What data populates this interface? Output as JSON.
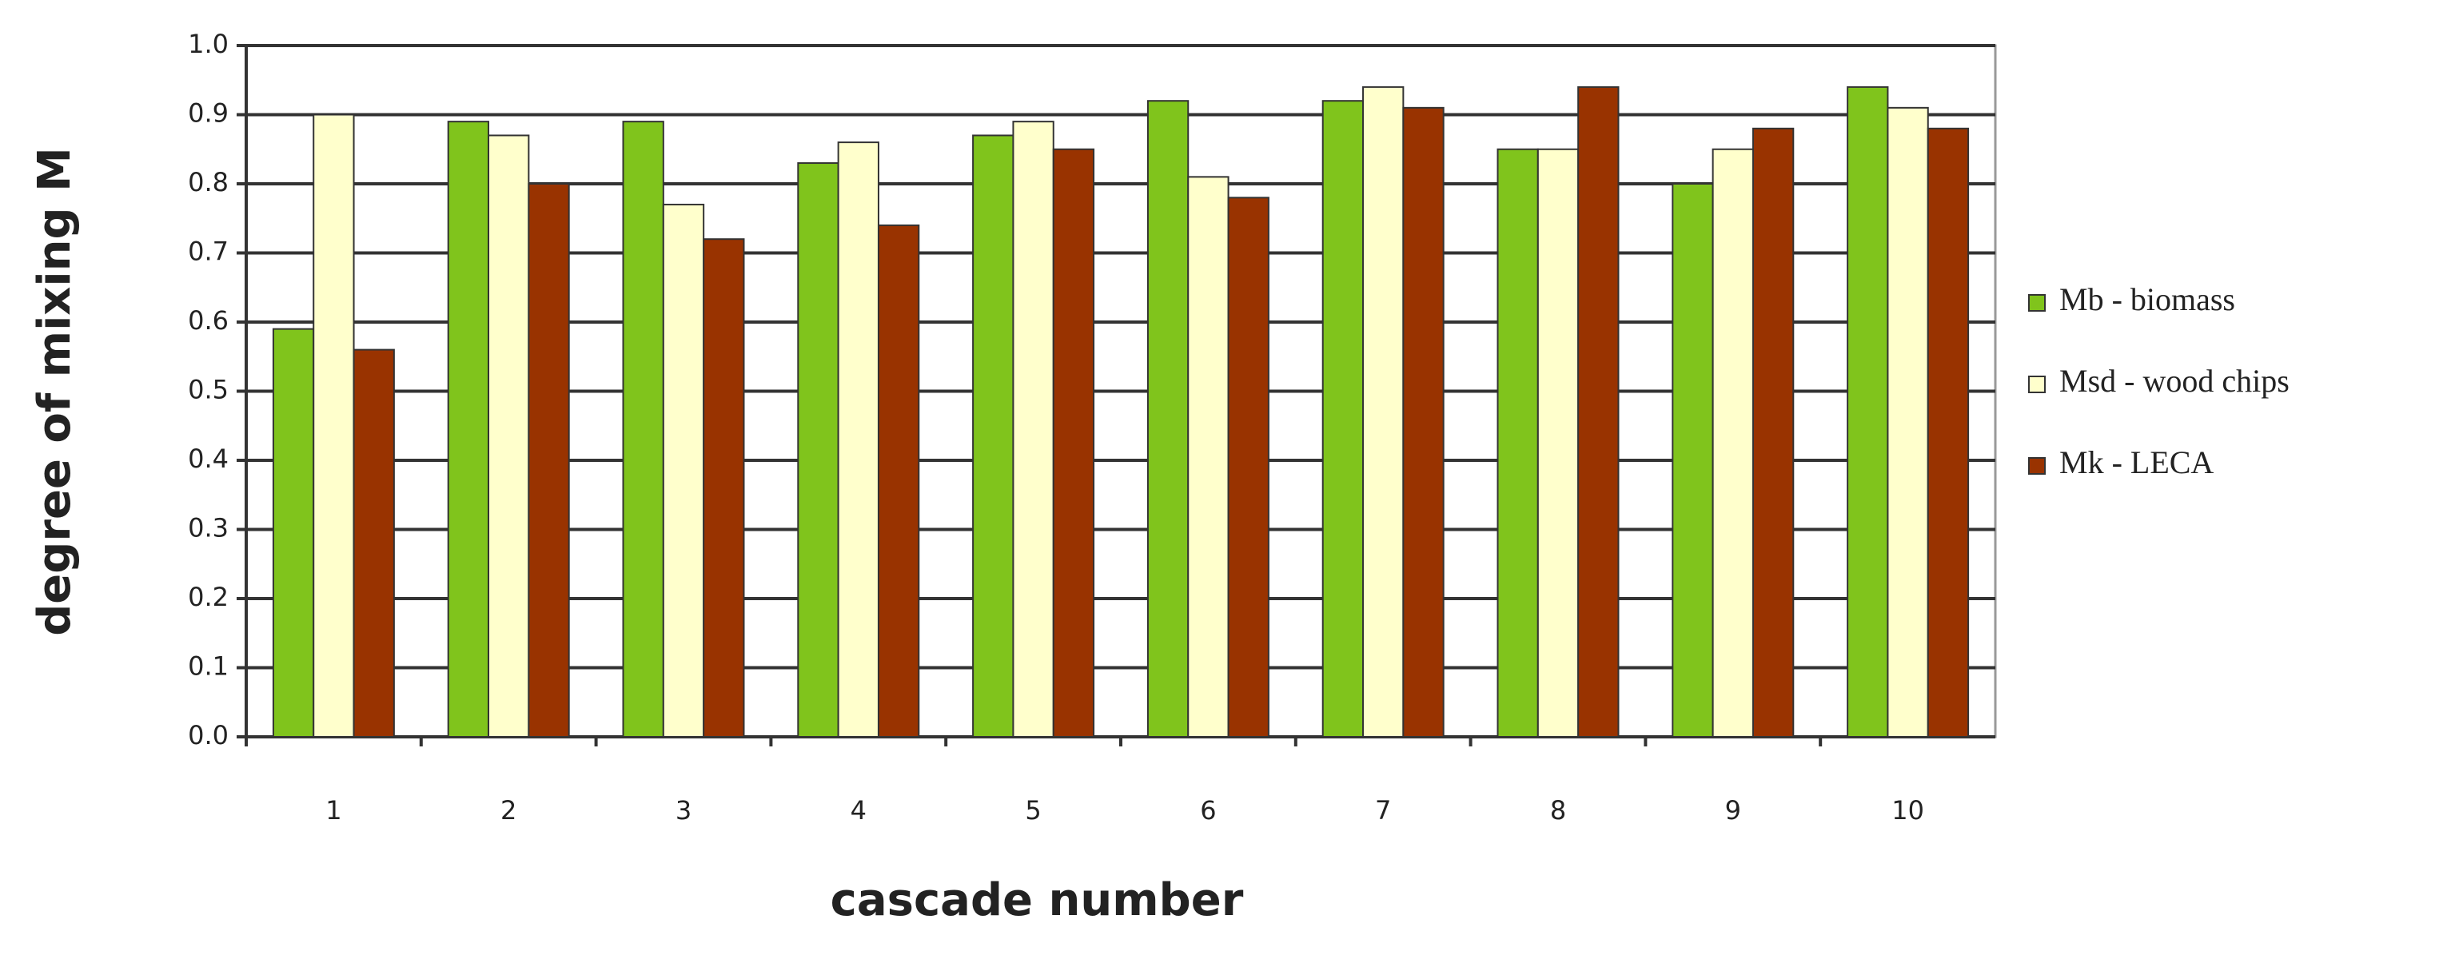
{
  "chart_data": {
    "type": "bar",
    "x_label": "cascade number",
    "y_label": "degree of mixing M",
    "categories": [
      "1",
      "2",
      "3",
      "4",
      "5",
      "6",
      "7",
      "8",
      "9",
      "10"
    ],
    "series": [
      {
        "name": "Mb - biomass",
        "color": "#80c41c",
        "values": [
          0.59,
          0.89,
          0.89,
          0.83,
          0.87,
          0.92,
          0.92,
          0.85,
          0.8,
          0.94
        ]
      },
      {
        "name": "Msd - wood chips",
        "color": "#ffffcc",
        "values": [
          0.9,
          0.87,
          0.77,
          0.86,
          0.89,
          0.81,
          0.94,
          0.85,
          0.85,
          0.91
        ]
      },
      {
        "name": "Mk - LECA",
        "color": "#993300",
        "values": [
          0.56,
          0.8,
          0.72,
          0.74,
          0.85,
          0.78,
          0.91,
          0.94,
          0.88,
          0.88
        ]
      }
    ],
    "ylim": [
      0,
      1
    ],
    "yticks": [
      {
        "value": 0,
        "label": "0.0"
      },
      0.1,
      0.2,
      0.3,
      0.4,
      0.5,
      0.6,
      0.7,
      0.8,
      0.9,
      {
        "value": 1,
        "label": "1.0"
      }
    ],
    "grid": true,
    "legend": "right"
  }
}
